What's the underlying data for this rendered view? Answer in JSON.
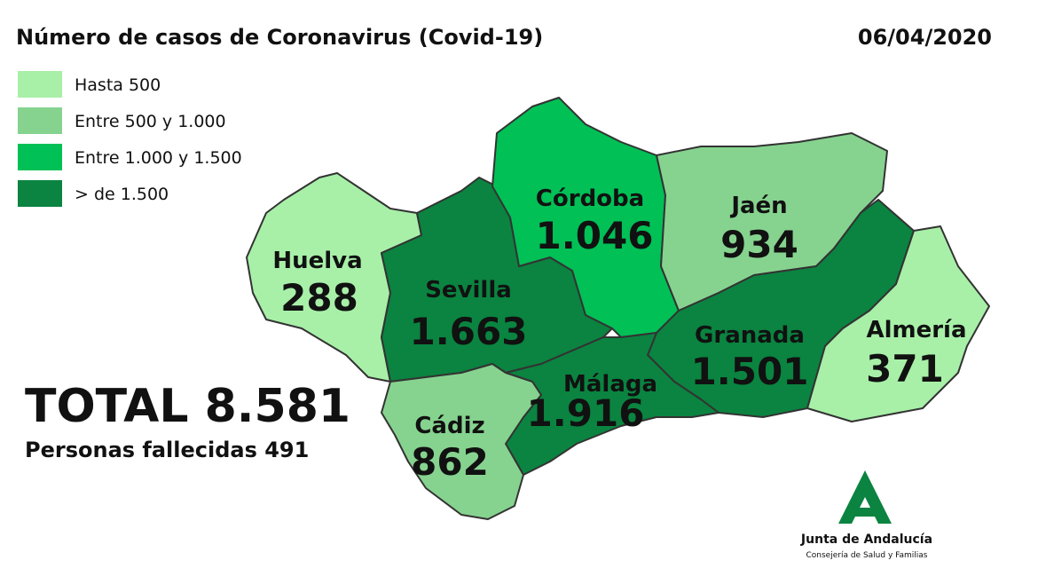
{
  "title": "Número de casos de Coronavirus (Covid-19)",
  "date": "06/04/2020",
  "legend": [
    {
      "label": "Hasta 500",
      "color": "#a8f0a8"
    },
    {
      "label": "Entre 500 y 1.000",
      "color": "#86d38f"
    },
    {
      "label": "Entre 1.000 y 1.500",
      "color": "#00c056"
    },
    {
      "label": "> de 1.500",
      "color": "#0a8440"
    }
  ],
  "provinces": [
    {
      "name": "Huelva",
      "label": "288",
      "color": "#a8f0a8"
    },
    {
      "name": "Sevilla",
      "label": "1.663",
      "color": "#0a8440"
    },
    {
      "name": "Córdoba",
      "label": "1.046",
      "color": "#00c056"
    },
    {
      "name": "Jaén",
      "label": "934",
      "color": "#86d38f"
    },
    {
      "name": "Granada",
      "label": "1.501",
      "color": "#0a8440"
    },
    {
      "name": "Almería",
      "label": "371",
      "color": "#a8f0a8"
    },
    {
      "name": "Málaga",
      "label": "1.916",
      "color": "#0a8440"
    },
    {
      "name": "Cádiz",
      "label": "862",
      "color": "#86d38f"
    }
  ],
  "total": "TOTAL 8.581",
  "deaths": "Personas fallecidas 491",
  "logo": {
    "name": "Junta de Andalucía",
    "department": "Consejería de Salud y Familias"
  }
}
